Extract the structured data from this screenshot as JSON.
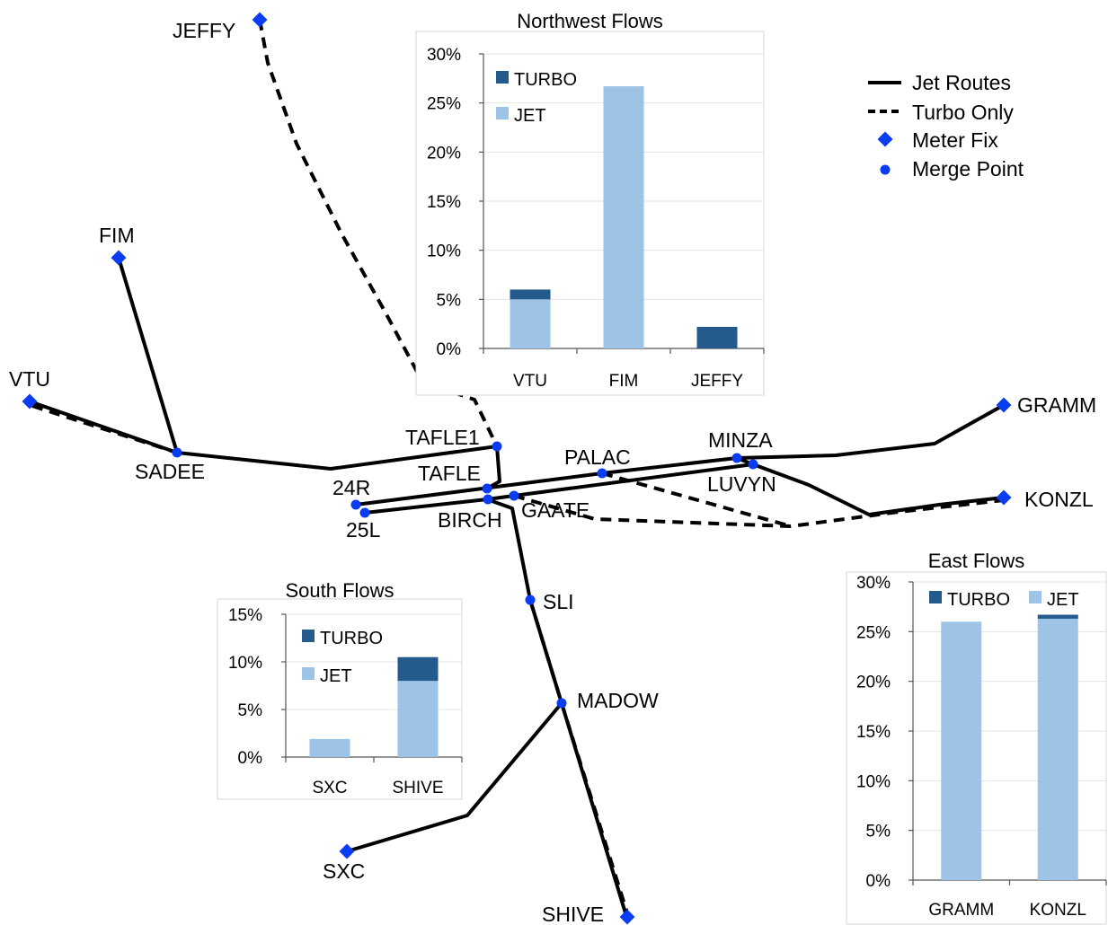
{
  "colors": {
    "jet": "#9dc3e6",
    "turbo": "#245a8c",
    "meter_fix": "#0a3cf2",
    "merge_point": "#0a3cf2",
    "route": "#000000"
  },
  "legend": {
    "jet_routes": "Jet Routes",
    "turbo_only": "Turbo Only",
    "meter_fix": "Meter Fix",
    "merge_point": "Merge Point"
  },
  "meter_fixes": [
    "JEFFY",
    "FIM",
    "VTU",
    "GRAMM",
    "KONZL",
    "SXC",
    "SHIVE"
  ],
  "merge_points": [
    "SADEE",
    "TAFLE1",
    "TAFLE",
    "24R",
    "25L",
    "BIRCH",
    "GAATE",
    "PALAC",
    "MINZA",
    "LUVYN",
    "SLI",
    "MADOW"
  ],
  "chart_data": [
    {
      "type": "bar",
      "stacked": true,
      "title": "Northwest Flows",
      "categories": [
        "VTU",
        "FIM",
        "JEFFY"
      ],
      "series": [
        {
          "name": "JET",
          "values": [
            5.0,
            26.7,
            0.0
          ]
        },
        {
          "name": "TURBO",
          "values": [
            1.0,
            0.0,
            2.2
          ]
        }
      ],
      "yticks": [
        "0%",
        "5%",
        "10%",
        "15%",
        "20%",
        "25%",
        "30%"
      ],
      "ylim": [
        0,
        30
      ],
      "legend": "top-left"
    },
    {
      "type": "bar",
      "stacked": true,
      "title": "South Flows",
      "categories": [
        "SXC",
        "SHIVE"
      ],
      "series": [
        {
          "name": "JET",
          "values": [
            1.9,
            8.0
          ]
        },
        {
          "name": "TURBO",
          "values": [
            0.0,
            2.5
          ]
        }
      ],
      "yticks": [
        "0%",
        "5%",
        "10%",
        "15%"
      ],
      "ylim": [
        0,
        15
      ],
      "legend": "top-left"
    },
    {
      "type": "bar",
      "stacked": true,
      "title": "East Flows",
      "categories": [
        "GRAMM",
        "KONZL"
      ],
      "series": [
        {
          "name": "JET",
          "values": [
            26.0,
            26.3
          ]
        },
        {
          "name": "TURBO",
          "values": [
            0.0,
            0.4
          ]
        }
      ],
      "yticks": [
        "0%",
        "5%",
        "10%",
        "15%",
        "20%",
        "25%",
        "30%"
      ],
      "ylim": [
        0,
        30
      ],
      "legend": "top"
    }
  ]
}
